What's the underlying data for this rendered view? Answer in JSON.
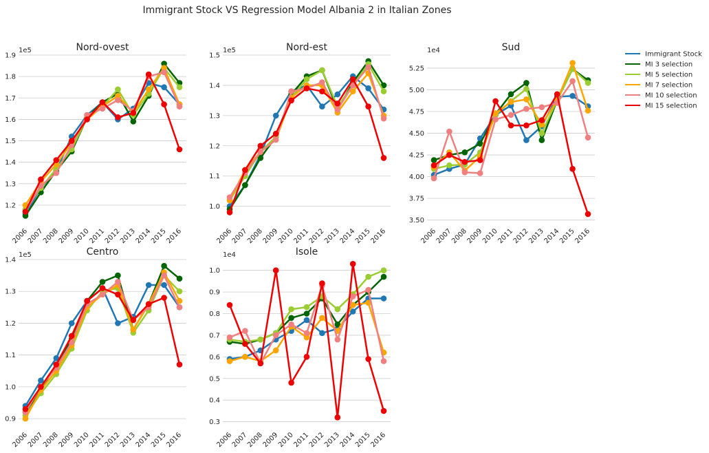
{
  "figure": {
    "title": "Immigrant Stock VS Regression Model Albania 2 in Italian Zones"
  },
  "colors": {
    "Immigrant Stock": "#1f77b4",
    "MI 3 selection": "#006400",
    "MI 5 selection": "#9acd32",
    "MI 7 selection": "#ffa500",
    "MI 10 selection": "#f08080",
    "MI 15 selection": "#ee0000"
  },
  "legend": {
    "placement": "right of figure",
    "entries": [
      "Immigrant Stock",
      "MI 3 selection",
      "MI 5 selection",
      "MI 7 selection",
      "MI 10 selection",
      "MI 15 selection"
    ]
  },
  "chart_data": [
    {
      "type": "line",
      "title": "Nord-ovest",
      "offset_label": "1e5",
      "categories": [
        "2006",
        "2007",
        "2008",
        "2009",
        "2010",
        "2011",
        "2012",
        "2013",
        "2014",
        "2015",
        "2016"
      ],
      "ylim": [
        1.11,
        1.9
      ],
      "yticks": [
        1.2,
        1.3,
        1.4,
        1.5,
        1.6,
        1.7,
        1.8,
        1.9
      ],
      "ytick_labels": [
        "1.2",
        "1.3",
        "1.4",
        "1.5",
        "1.6",
        "1.7",
        "1.8",
        "1.9"
      ],
      "grid": "horizontal",
      "series": [
        {
          "name": "Immigrant Stock",
          "values": [
            1.16,
            1.28,
            1.36,
            1.52,
            1.62,
            1.68,
            1.6,
            1.65,
            1.77,
            1.75,
            1.67
          ]
        },
        {
          "name": "MI 3 selection",
          "values": [
            1.15,
            1.26,
            1.36,
            1.45,
            1.61,
            1.68,
            1.72,
            1.59,
            1.71,
            1.86,
            1.77
          ]
        },
        {
          "name": "MI 5 selection",
          "values": [
            1.18,
            1.28,
            1.37,
            1.46,
            1.61,
            1.66,
            1.74,
            1.62,
            1.72,
            1.84,
            1.75
          ]
        },
        {
          "name": "MI 7 selection",
          "values": [
            1.2,
            1.31,
            1.39,
            1.49,
            1.6,
            1.66,
            1.71,
            1.63,
            1.74,
            1.84,
            1.67
          ]
        },
        {
          "name": "MI 10 selection",
          "values": [
            1.17,
            1.29,
            1.35,
            1.48,
            1.62,
            1.65,
            1.69,
            1.64,
            1.8,
            1.82,
            1.66
          ]
        },
        {
          "name": "MI 15 selection",
          "values": [
            1.17,
            1.32,
            1.41,
            1.5,
            1.6,
            1.68,
            1.61,
            1.63,
            1.81,
            1.67,
            1.46
          ]
        }
      ]
    },
    {
      "type": "line",
      "title": "Nord-est",
      "offset_label": "1e5",
      "categories": [
        "2006",
        "2007",
        "2008",
        "2009",
        "2010",
        "2011",
        "2012",
        "2013",
        "2014",
        "2015",
        "2016"
      ],
      "ylim": [
        0.94,
        1.5
      ],
      "yticks": [
        1.0,
        1.1,
        1.2,
        1.3,
        1.4,
        1.5
      ],
      "ytick_labels": [
        "1.0",
        "1.1",
        "1.2",
        "1.3",
        "1.4",
        "1.5"
      ],
      "grid": "horizontal",
      "series": [
        {
          "name": "Immigrant Stock",
          "values": [
            1.0,
            1.07,
            1.17,
            1.3,
            1.38,
            1.4,
            1.33,
            1.37,
            1.43,
            1.39,
            1.32
          ]
        },
        {
          "name": "MI 3 selection",
          "values": [
            0.99,
            1.07,
            1.16,
            1.23,
            1.37,
            1.43,
            1.45,
            1.32,
            1.41,
            1.48,
            1.4
          ]
        },
        {
          "name": "MI 5 selection",
          "values": [
            1.02,
            1.1,
            1.18,
            1.23,
            1.36,
            1.42,
            1.45,
            1.33,
            1.4,
            1.47,
            1.38
          ]
        },
        {
          "name": "MI 7 selection",
          "values": [
            1.02,
            1.12,
            1.18,
            1.22,
            1.36,
            1.4,
            1.4,
            1.31,
            1.38,
            1.44,
            1.3
          ]
        },
        {
          "name": "MI 10 selection",
          "values": [
            1.03,
            1.11,
            1.18,
            1.22,
            1.38,
            1.39,
            1.41,
            1.32,
            1.4,
            1.46,
            1.29
          ]
        },
        {
          "name": "MI 15 selection",
          "values": [
            0.98,
            1.12,
            1.2,
            1.24,
            1.35,
            1.39,
            1.38,
            1.34,
            1.42,
            1.33,
            1.16
          ]
        }
      ]
    },
    {
      "type": "line",
      "title": "Sud",
      "offset_label": "1e4",
      "categories": [
        "2006",
        "2007",
        "2008",
        "2009",
        "2010",
        "2011",
        "2012",
        "2013",
        "2014",
        "2015",
        "2016"
      ],
      "ylim": [
        3.45,
        5.4
      ],
      "yticks": [
        3.5,
        3.75,
        4.0,
        4.25,
        4.5,
        4.75,
        5.0,
        5.25
      ],
      "ytick_labels": [
        "3.50",
        "3.75",
        "4.00",
        "4.25",
        "4.50",
        "4.75",
        "5.00",
        "5.25"
      ],
      "grid": "horizontal",
      "series": [
        {
          "name": "Immigrant Stock",
          "values": [
            4.02,
            4.09,
            4.14,
            4.44,
            4.71,
            4.82,
            4.42,
            4.58,
            4.92,
            4.93,
            4.81
          ]
        },
        {
          "name": "MI 3 selection",
          "values": [
            4.19,
            4.25,
            4.28,
            4.38,
            4.72,
            4.95,
            5.08,
            4.42,
            4.88,
            5.24,
            5.11
          ]
        },
        {
          "name": "MI 5 selection",
          "values": [
            4.09,
            4.13,
            4.14,
            4.28,
            4.71,
            4.87,
            5.01,
            4.5,
            4.88,
            5.24,
            5.08
          ]
        },
        {
          "name": "MI 7 selection",
          "values": [
            4.11,
            4.28,
            4.07,
            4.23,
            4.73,
            4.86,
            4.89,
            4.6,
            4.88,
            5.31,
            4.76
          ]
        },
        {
          "name": "MI 10 selection",
          "values": [
            3.98,
            4.52,
            4.05,
            4.04,
            4.66,
            4.71,
            4.78,
            4.8,
            4.85,
            5.1,
            4.45
          ]
        },
        {
          "name": "MI 15 selection",
          "values": [
            4.13,
            4.25,
            4.17,
            4.19,
            4.87,
            4.59,
            4.59,
            4.65,
            4.95,
            4.09,
            3.57
          ]
        }
      ]
    },
    {
      "type": "line",
      "title": "Centro",
      "offset_label": "1e5",
      "categories": [
        "2006",
        "2007",
        "2008",
        "2009",
        "2010",
        "2011",
        "2012",
        "2013",
        "2014",
        "2015",
        "2016"
      ],
      "ylim": [
        0.87,
        1.4
      ],
      "yticks": [
        0.9,
        1.0,
        1.1,
        1.2,
        1.3,
        1.4
      ],
      "ytick_labels": [
        "0.9",
        "1.0",
        "1.1",
        "1.2",
        "1.3",
        "1.4"
      ],
      "grid": "horizontal",
      "series": [
        {
          "name": "Immigrant Stock",
          "values": [
            0.94,
            1.02,
            1.09,
            1.2,
            1.27,
            1.31,
            1.2,
            1.22,
            1.32,
            1.32,
            1.25
          ]
        },
        {
          "name": "MI 3 selection",
          "values": [
            0.92,
            0.99,
            1.07,
            1.15,
            1.27,
            1.33,
            1.35,
            1.18,
            1.26,
            1.38,
            1.34
          ]
        },
        {
          "name": "MI 5 selection",
          "values": [
            0.91,
            0.98,
            1.04,
            1.12,
            1.24,
            1.3,
            1.31,
            1.17,
            1.24,
            1.35,
            1.3
          ]
        },
        {
          "name": "MI 7 selection",
          "values": [
            0.9,
            0.99,
            1.05,
            1.13,
            1.25,
            1.29,
            1.32,
            1.18,
            1.26,
            1.36,
            1.27
          ]
        },
        {
          "name": "MI 10 selection",
          "values": [
            0.92,
            1.0,
            1.06,
            1.14,
            1.26,
            1.29,
            1.33,
            1.21,
            1.25,
            1.35,
            1.25
          ]
        },
        {
          "name": "MI 15 selection",
          "values": [
            0.93,
            1.0,
            1.07,
            1.16,
            1.27,
            1.31,
            1.29,
            1.21,
            1.26,
            1.28,
            1.07
          ]
        }
      ]
    },
    {
      "type": "line",
      "title": "Isole",
      "offset_label": "1e4",
      "categories": [
        "2006",
        "2007",
        "2008",
        "2009",
        "2010",
        "2011",
        "2012",
        "2013",
        "2014",
        "2015",
        "2016"
      ],
      "ylim": [
        0.27,
        1.05
      ],
      "yticks": [
        0.3,
        0.4,
        0.5,
        0.6,
        0.7,
        0.8,
        0.9,
        1.0
      ],
      "ytick_labels": [
        "0.3",
        "0.4",
        "0.5",
        "0.6",
        "0.7",
        "0.8",
        "0.9",
        "1.0"
      ],
      "grid": "horizontal",
      "series": [
        {
          "name": "Immigrant Stock",
          "values": [
            0.59,
            0.6,
            0.63,
            0.68,
            0.72,
            0.77,
            0.71,
            0.73,
            0.81,
            0.87,
            0.87
          ]
        },
        {
          "name": "MI 3 selection",
          "values": [
            0.67,
            0.66,
            0.68,
            0.71,
            0.78,
            0.8,
            0.87,
            0.75,
            0.84,
            0.9,
            0.97
          ]
        },
        {
          "name": "MI 5 selection",
          "values": [
            0.68,
            0.67,
            0.68,
            0.71,
            0.82,
            0.83,
            0.88,
            0.82,
            0.89,
            0.97,
            1.0
          ]
        },
        {
          "name": "MI 7 selection",
          "values": [
            0.58,
            0.6,
            0.58,
            0.63,
            0.74,
            0.69,
            0.78,
            0.72,
            0.84,
            0.85,
            0.62
          ]
        },
        {
          "name": "MI 10 selection",
          "values": [
            0.69,
            0.72,
            0.57,
            0.7,
            0.75,
            0.71,
            0.93,
            0.68,
            0.88,
            0.91,
            0.58
          ]
        },
        {
          "name": "MI 15 selection",
          "values": [
            0.84,
            0.66,
            0.57,
            1.0,
            0.48,
            0.6,
            0.94,
            0.32,
            1.03,
            0.59,
            0.35
          ]
        }
      ]
    }
  ]
}
